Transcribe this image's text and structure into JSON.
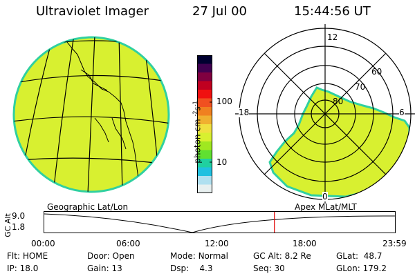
{
  "header": {
    "instrument": "Ultraviolet Imager",
    "date": "27 Jul 00",
    "time": "15:44:56 UT"
  },
  "colorbar": {
    "label": "photon cm",
    "label_exp": "-2",
    "label_unit": "s",
    "label_unit_exp": "-1",
    "tick_100": "100",
    "tick_10": "10",
    "colors": [
      "#000030",
      "#400050",
      "#800040",
      "#c00020",
      "#f01010",
      "#f05020",
      "#f08020",
      "#f0b030",
      "#f0e040",
      "#d8f030",
      "#a0e820",
      "#60e030",
      "#20d0a0",
      "#20c0e0",
      "#b0e0f0",
      "#e8f0f0"
    ]
  },
  "polar": {
    "labels_clock": {
      "top": "12",
      "left": "18",
      "right": "6",
      "bottom": "0"
    },
    "labels_lat": [
      "80",
      "70",
      "60"
    ]
  },
  "panel_labels": {
    "left": "Geographic Lat/Lon",
    "right": "Apex MLat/MLT"
  },
  "altitude_plot": {
    "ylabel": "GC Alt",
    "ytick_top": "9.0",
    "ytick_bottom": "1.8",
    "xticks": [
      "00:00",
      "06:00",
      "12:00",
      "18:00",
      "23:59"
    ],
    "marker_hour": 15.75
  },
  "info": {
    "row1": [
      {
        "key": "Flt:",
        "val": "HOME"
      },
      {
        "key": "Door:",
        "val": "Open"
      },
      {
        "key": "Mode:",
        "val": "Normal"
      },
      {
        "key": "GC Alt:",
        "val": "8.2 Re"
      },
      {
        "key": "GLat:",
        "val": "48.7"
      }
    ],
    "row2": [
      {
        "key": "IP:",
        "val": "18.0"
      },
      {
        "key": "Gain:",
        "val": "13"
      },
      {
        "key": "Dsp:",
        "val": "4.3"
      },
      {
        "key": "Seq:",
        "val": "30"
      },
      {
        "key": "GLon:",
        "val": "179.2"
      }
    ]
  },
  "colors": {
    "disk_fill": "#d8f030",
    "disk_edge": "#30d0a0",
    "marker": "#e00000"
  }
}
